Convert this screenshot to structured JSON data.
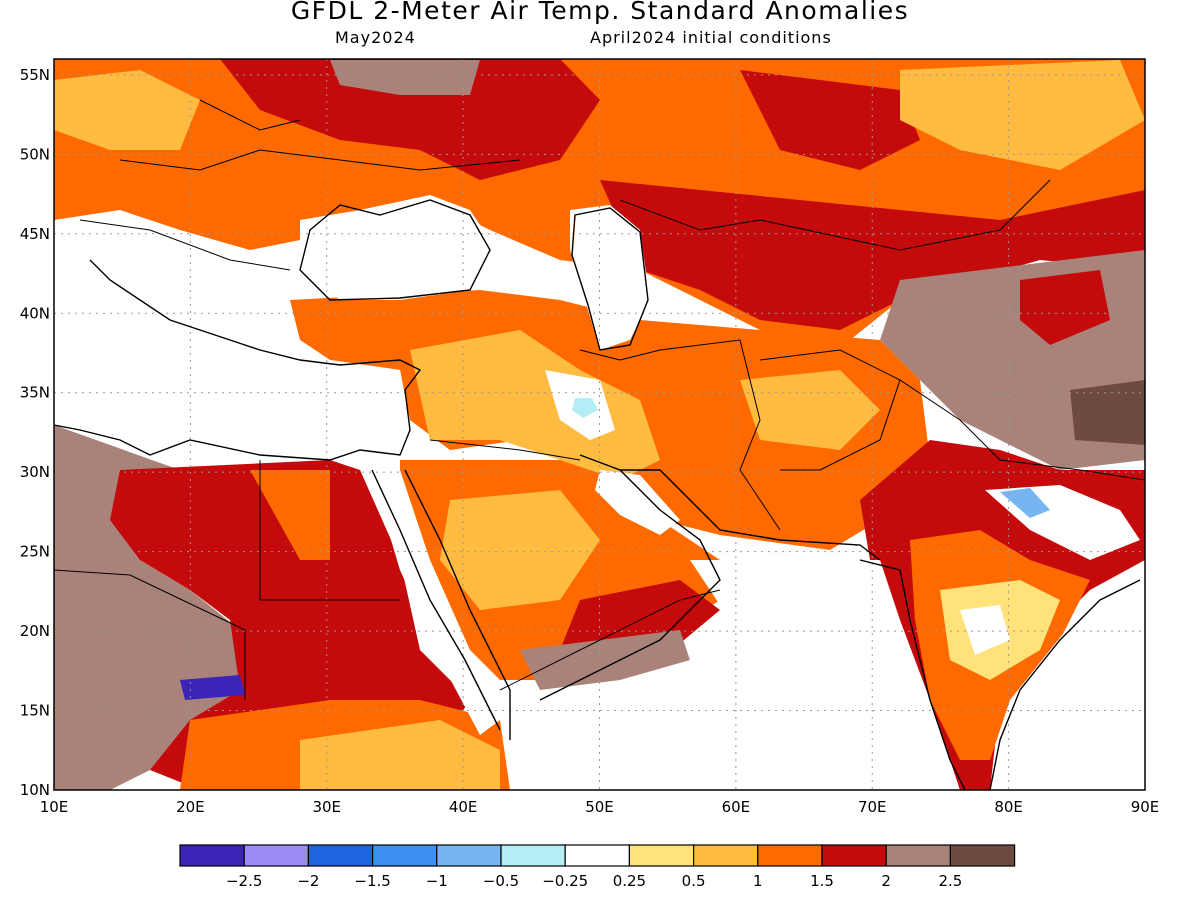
{
  "header": {
    "title": "GFDL 2-Meter Air Temp. Standard Anomalies",
    "subtitle_left": "May2024",
    "subtitle_right": "April2024 initial conditions"
  },
  "map": {
    "lon_labels": [
      "10E",
      "20E",
      "30E",
      "40E",
      "50E",
      "60E",
      "70E",
      "80E",
      "90E"
    ],
    "lat_labels": [
      "55N",
      "50N",
      "45N",
      "40N",
      "35N",
      "30N",
      "25N",
      "20N",
      "15N",
      "10N"
    ],
    "lon_range": [
      10,
      90
    ],
    "lat_range": [
      10,
      56
    ],
    "grid": "dotted",
    "land_fill": "#ffffff",
    "ocean_fill": "#ffffff"
  },
  "legend": {
    "colors": [
      "#3b25b8",
      "#9b8cf4",
      "#1f63e0",
      "#3d8ff0",
      "#76b4f2",
      "#b4eef4",
      "#ffffff",
      "#ffe27a",
      "#ffbc40",
      "#ff6a00",
      "#c40a0a",
      "#a9837a",
      "#6e4a40"
    ],
    "labels": [
      "-2.5",
      "-2",
      "-1.5",
      "-1",
      "-0.5",
      "-0.25",
      "0.25",
      "0.5",
      "1",
      "1.5",
      "2",
      "2.5"
    ]
  }
}
